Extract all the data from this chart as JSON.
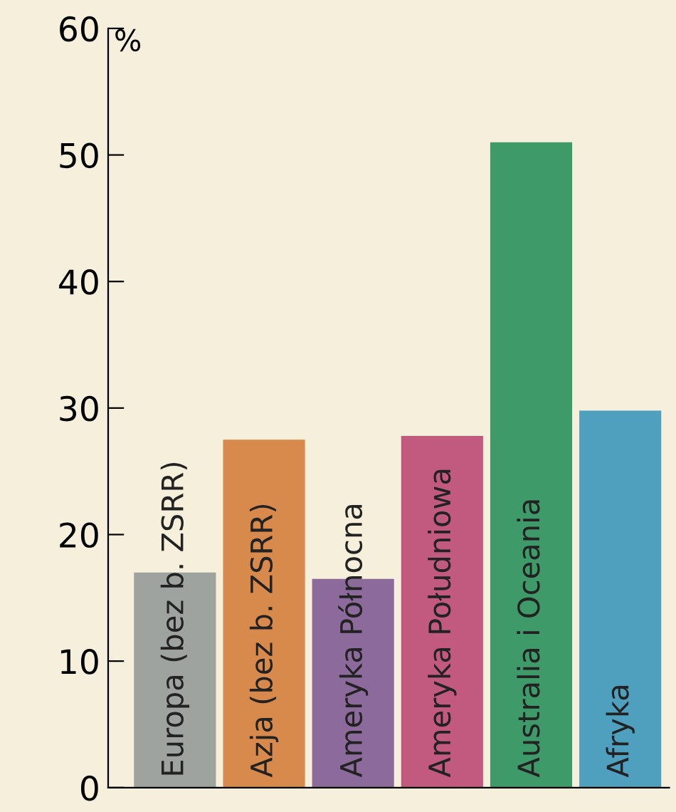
{
  "chart_data": {
    "type": "bar",
    "ylabel": "%",
    "categories": [
      "Europa (bez b. ZSRR)",
      "Azja (bez b. ZSRR)",
      "Ameryka Północna",
      "Ameryka Południowa",
      "Australia i Oceania",
      "Afryka"
    ],
    "values": [
      17,
      27.5,
      16.5,
      27.8,
      51,
      29.8
    ],
    "colors": [
      "#9ea39f",
      "#d88a4c",
      "#8c6b9c",
      "#c25a80",
      "#3f9a6a",
      "#4f9fbf"
    ],
    "ylim": [
      0,
      60
    ],
    "yticks": [
      0,
      10,
      20,
      30,
      40,
      50,
      60
    ],
    "grid": false
  }
}
